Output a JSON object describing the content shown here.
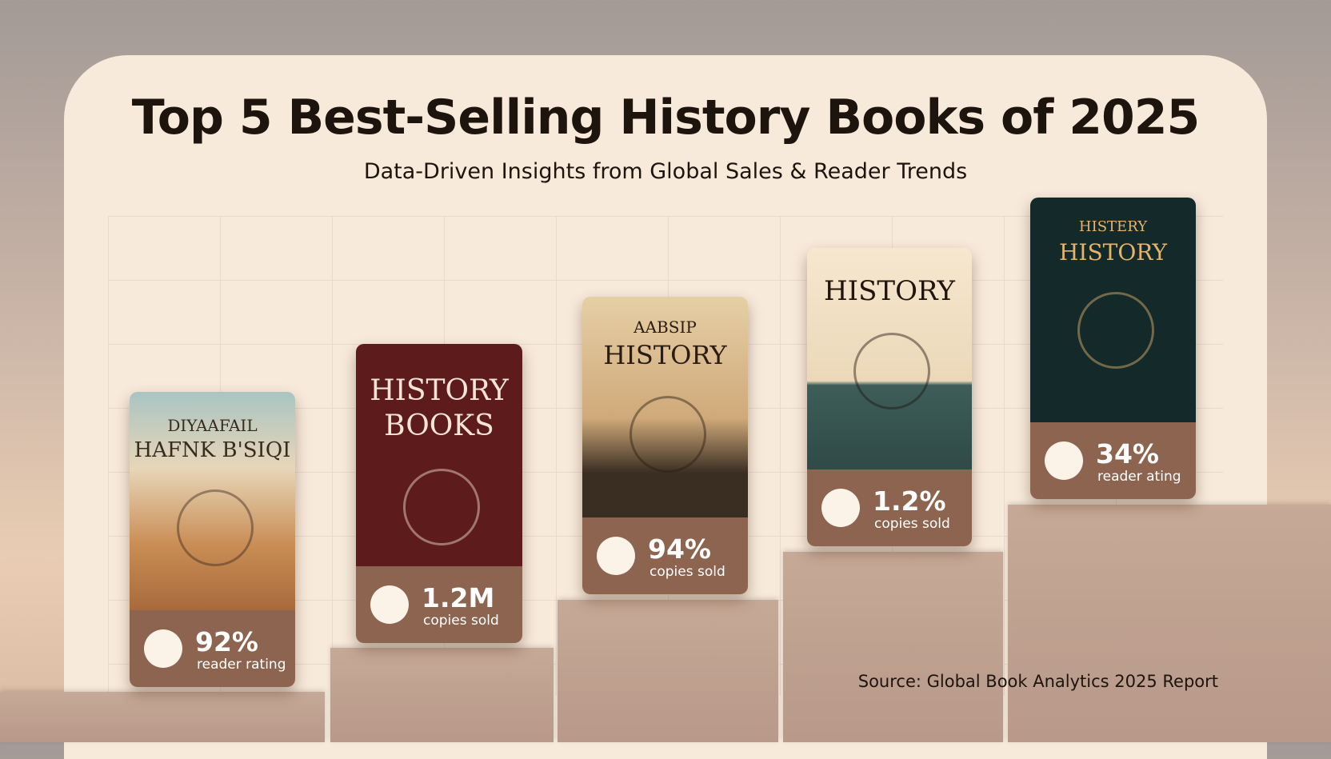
{
  "header": {
    "title": "Top 5 Best-Selling History Books of 2025",
    "subtitle": "Data-Driven Insights from Global Sales & Reader Trends"
  },
  "books": [
    {
      "cover_lines": [
        "DIYAAFAIL",
        "HAFNK B'SIQI"
      ],
      "stat": "92%",
      "stat_label": "reader rating"
    },
    {
      "cover_lines": [
        "HISTORY",
        "BOOKS"
      ],
      "stat": "1.2M",
      "stat_label": "copies sold"
    },
    {
      "cover_lines": [
        "AABSIP",
        "HISTORY"
      ],
      "stat": "94%",
      "stat_label": "copies sold"
    },
    {
      "cover_lines": [
        "HISTORY"
      ],
      "stat": "1.2%",
      "stat_label": "copies sold"
    },
    {
      "cover_lines": [
        "HISTERY",
        "HISTORY"
      ],
      "stat": "34%",
      "stat_label": "reader ating"
    }
  ],
  "source": "Source: Global Book Analytics 2025 Report"
}
